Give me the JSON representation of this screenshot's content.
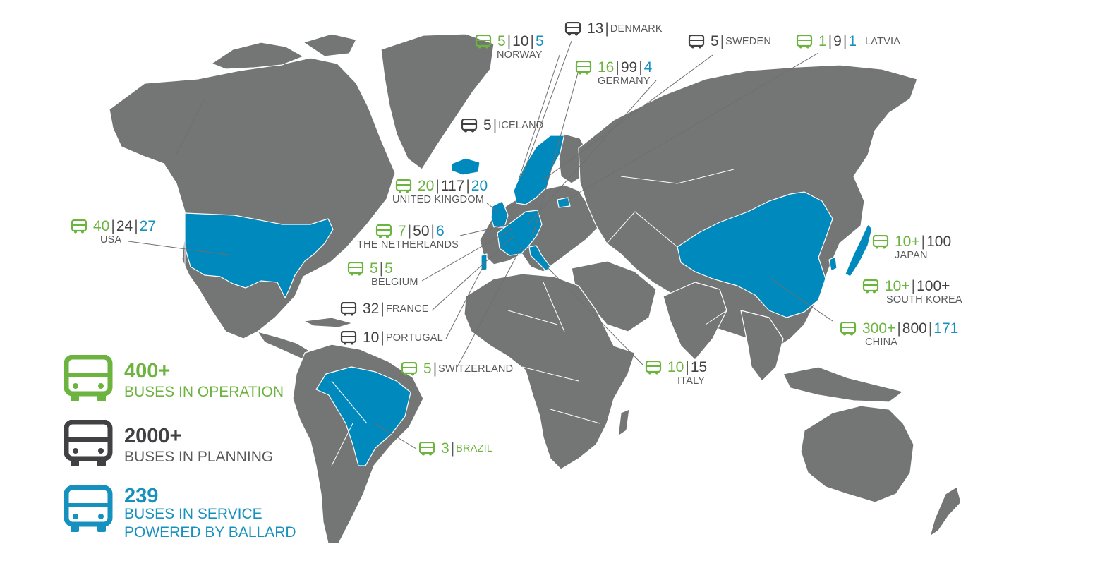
{
  "colors": {
    "operation": "#6cb33f",
    "planning": "#414042",
    "ballard": "#1690bf",
    "land": "#747676",
    "highlight": "#0089bd"
  },
  "icons": {
    "bus": "bus-icon"
  },
  "countries": {
    "denmark": {
      "name": "DENMARK",
      "values": [
        "13"
      ]
    },
    "norway": {
      "name": "NORWAY",
      "values": [
        "5",
        "10",
        "5"
      ]
    },
    "sweden": {
      "name": "SWEDEN",
      "values": [
        "5"
      ]
    },
    "latvia": {
      "name": "LATVIA",
      "values": [
        "1",
        "9",
        "1"
      ]
    },
    "germany": {
      "name": "GERMANY",
      "values": [
        "16",
        "99",
        "4"
      ]
    },
    "iceland": {
      "name": "ICELAND",
      "values": [
        "5"
      ]
    },
    "uk": {
      "name": "UNITED KINGDOM",
      "values": [
        "20",
        "117",
        "20"
      ]
    },
    "usa": {
      "name": "USA",
      "values": [
        "40",
        "24",
        "27"
      ]
    },
    "netherlands": {
      "name": "THE NETHERLANDS",
      "values": [
        "7",
        "50",
        "6"
      ]
    },
    "belgium": {
      "name": "BELGIUM",
      "values": [
        "5",
        "5"
      ]
    },
    "france": {
      "name": "FRANCE",
      "values": [
        "32"
      ]
    },
    "portugal": {
      "name": "PORTUGAL",
      "values": [
        "10"
      ]
    },
    "switzerland": {
      "name": "SWITZERLAND",
      "values": [
        "5"
      ]
    },
    "italy": {
      "name": "ITALY",
      "values": [
        "10",
        "15"
      ]
    },
    "brazil": {
      "name": "BRAZIL",
      "values": [
        "3"
      ]
    },
    "japan": {
      "name": "JAPAN",
      "values": [
        "10+",
        "100"
      ]
    },
    "south_korea": {
      "name": "SOUTH KOREA",
      "values": [
        "10+",
        "100+"
      ]
    },
    "china": {
      "name": "CHINA",
      "values": [
        "300+",
        "800",
        "171"
      ]
    }
  },
  "legend": {
    "operation": {
      "value": "400+",
      "caption": "BUSES IN OPERATION"
    },
    "planning": {
      "value": "2000+",
      "caption": "BUSES IN PLANNING"
    },
    "ballard": {
      "value": "239",
      "caption_line1": "BUSES IN SERVICE",
      "caption_line2": "POWERED BY BALLARD"
    }
  }
}
